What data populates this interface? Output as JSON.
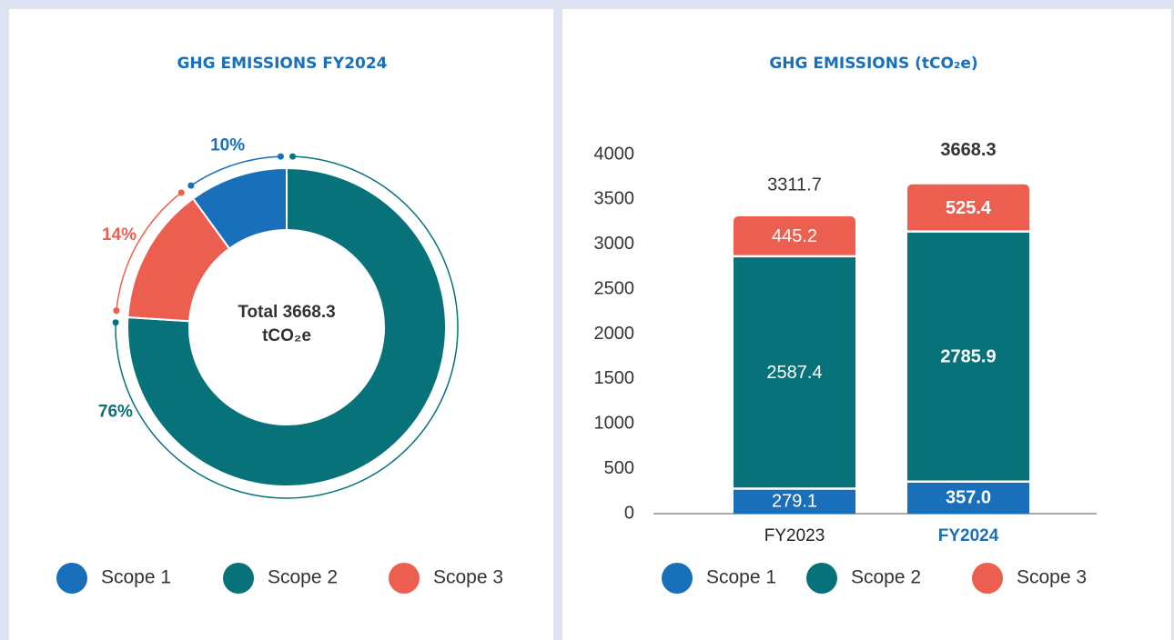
{
  "chart_data": [
    {
      "type": "donut",
      "title": "GHG EMISSIONS FY2024",
      "center_label": [
        "Total 3668.3",
        "tCO₂e"
      ],
      "series": [
        {
          "name": "Scope 1",
          "color": "#1a6fba",
          "values": [
            10
          ],
          "value_labels": [
            "10%"
          ]
        },
        {
          "name": "Scope 2",
          "color": "#08727a",
          "values": [
            76
          ],
          "value_labels": [
            "76%"
          ]
        },
        {
          "name": "Scope 3",
          "color": "#ec5f50",
          "values": [
            14
          ],
          "value_labels": [
            "14%"
          ]
        }
      ]
    },
    {
      "type": "stacked-bar",
      "title": "GHG EMISSIONS (tCO₂e)",
      "categories": [
        "FY2023",
        "FY2024"
      ],
      "series": [
        {
          "name": "Scope 1",
          "color": "#1a6fba",
          "values": [
            279.1,
            357.0
          ],
          "value_labels": [
            "279.1",
            "357.0"
          ]
        },
        {
          "name": "Scope 2",
          "color": "#08727a",
          "values": [
            2587.4,
            2785.9
          ]
        },
        {
          "name": "Scope 3",
          "color": "#ec5f50",
          "values": [
            445.2,
            525.4
          ]
        }
      ],
      "totals": [
        3311.7,
        3668.3
      ],
      "ylim": [
        0,
        4000
      ],
      "yticks": [
        0,
        500,
        1000,
        1500,
        2000,
        2500,
        3000,
        3500,
        4000
      ]
    }
  ]
}
